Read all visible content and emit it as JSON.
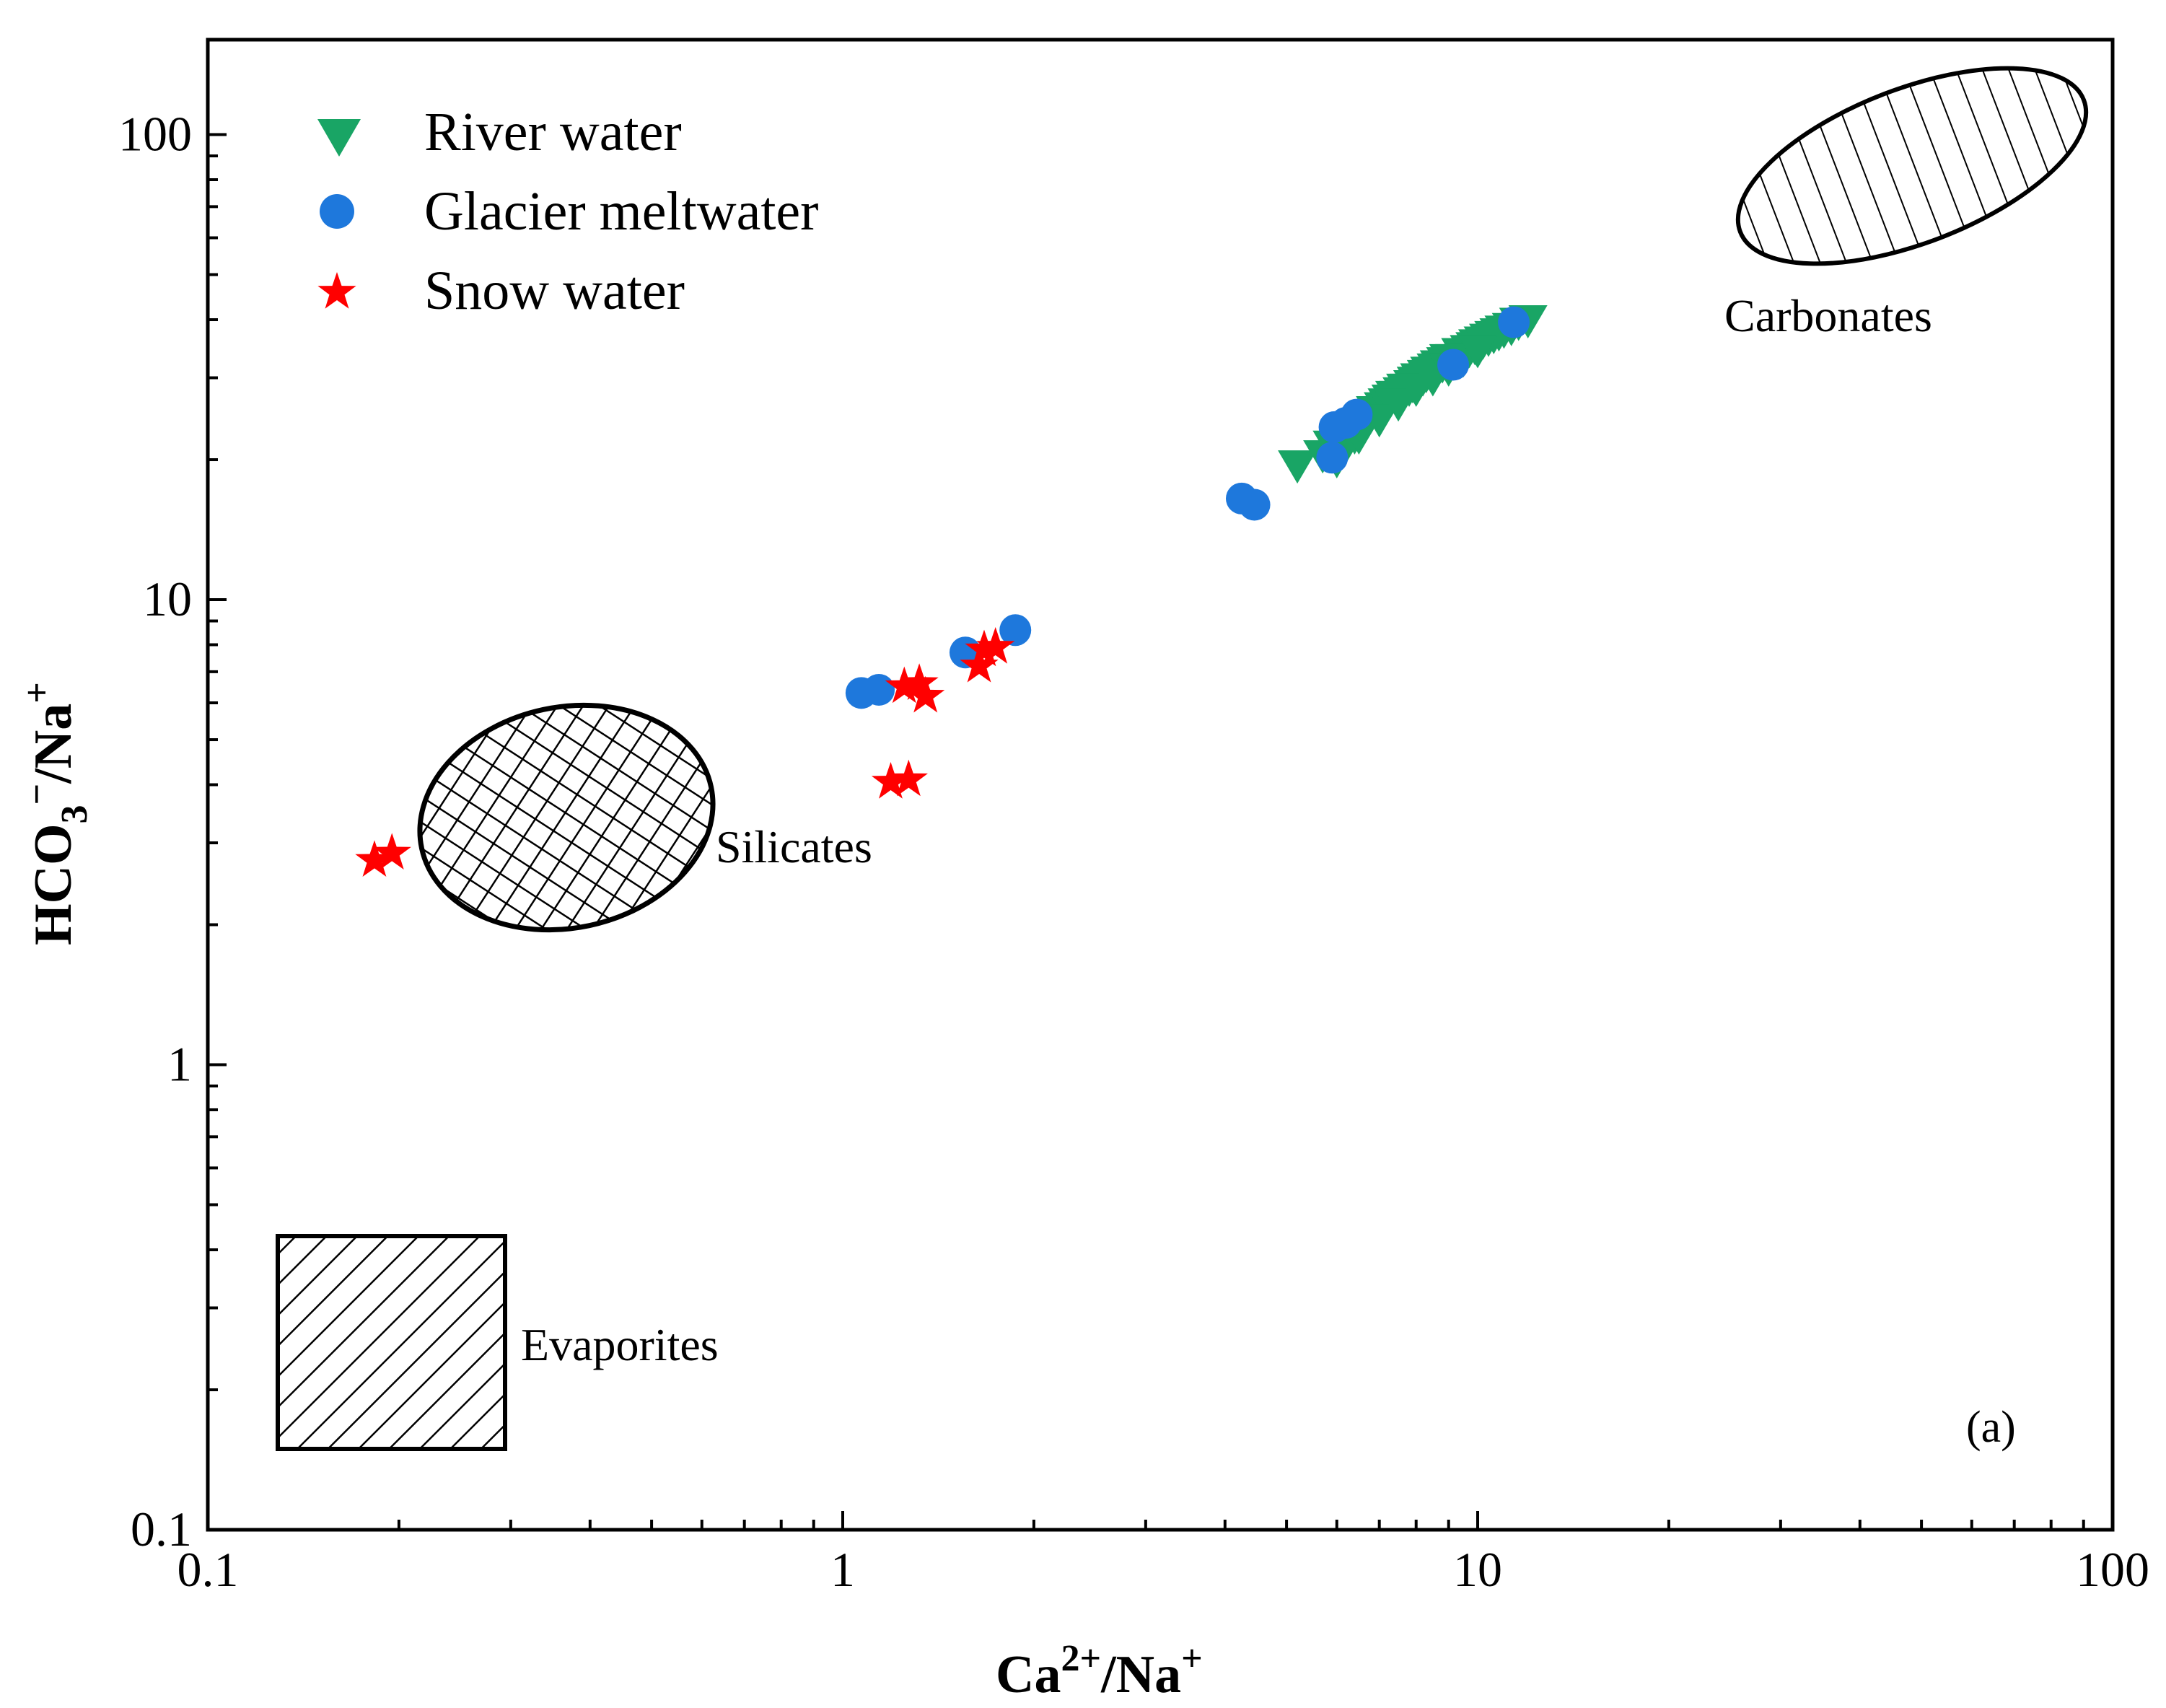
{
  "chart_data": {
    "type": "scatter",
    "xlabel": "Ca2+/Na+",
    "ylabel": "HCO3−/Na+",
    "xlabel_parts": {
      "base1": "Ca",
      "sup1": "2+",
      "mid": "/Na",
      "sup2": "+"
    },
    "ylabel_parts": {
      "base1": "HCO",
      "sub1": "3",
      "sup1": "−",
      "mid": "/Na",
      "sup2": "+"
    },
    "xscale": "log",
    "yscale": "log",
    "xlim": [
      0.1,
      100
    ],
    "ylim": [
      0.1,
      160
    ],
    "x_ticks": [
      0.1,
      1,
      10,
      100
    ],
    "x_tick_labels": [
      "0.1",
      "1",
      "10",
      "100"
    ],
    "y_ticks": [
      0.1,
      1,
      10,
      100
    ],
    "y_tick_labels": [
      "0.1",
      "1",
      "10",
      "100"
    ],
    "grid": false,
    "legend_position": "top-left",
    "panel_label": "(a)",
    "series": [
      {
        "name": "River water",
        "marker": "triangle-down",
        "color": "#19a565",
        "points": [
          [
            5.2,
            19.5
          ],
          [
            5.7,
            20.5
          ],
          [
            5.9,
            21.5
          ],
          [
            6.0,
            21.0
          ],
          [
            6.1,
            22.0
          ],
          [
            6.2,
            21.5
          ],
          [
            6.3,
            23.0
          ],
          [
            6.4,
            22.5
          ],
          [
            6.5,
            23.5
          ],
          [
            6.6,
            24.0
          ],
          [
            6.7,
            24.5
          ],
          [
            6.8,
            25.0
          ],
          [
            6.9,
            25.5
          ],
          [
            7.0,
            25.5
          ],
          [
            7.1,
            26.0
          ],
          [
            7.2,
            26.5
          ],
          [
            7.3,
            27.0
          ],
          [
            7.4,
            27.5
          ],
          [
            7.5,
            27.5
          ],
          [
            7.6,
            28.0
          ],
          [
            7.7,
            28.5
          ],
          [
            7.8,
            28.5
          ],
          [
            7.9,
            29.0
          ],
          [
            8.0,
            29.5
          ],
          [
            8.1,
            30.0
          ],
          [
            8.2,
            30.0
          ],
          [
            8.3,
            30.5
          ],
          [
            8.4,
            31.0
          ],
          [
            8.5,
            31.0
          ],
          [
            8.6,
            31.5
          ],
          [
            8.7,
            32.0
          ],
          [
            8.8,
            32.0
          ],
          [
            8.9,
            32.5
          ],
          [
            9.0,
            33.0
          ],
          [
            9.2,
            33.0
          ],
          [
            9.4,
            34.0
          ],
          [
            9.5,
            34.0
          ],
          [
            9.7,
            34.5
          ],
          [
            9.9,
            35.0
          ],
          [
            10.0,
            35.5
          ],
          [
            10.2,
            36.0
          ],
          [
            10.4,
            36.5
          ],
          [
            10.6,
            37.0
          ],
          [
            10.8,
            37.5
          ],
          [
            11.0,
            38.0
          ],
          [
            11.3,
            38.5
          ],
          [
            11.6,
            39.5
          ],
          [
            12.0,
            40.0
          ],
          [
            6.0,
            20.0
          ],
          [
            6.5,
            22.5
          ],
          [
            7.0,
            24.5
          ],
          [
            7.5,
            26.5
          ],
          [
            8.0,
            28.5
          ],
          [
            8.5,
            30.0
          ],
          [
            9.0,
            31.5
          ],
          [
            9.5,
            33.0
          ],
          [
            10.0,
            34.5
          ]
        ]
      },
      {
        "name": "Glacier meltwater",
        "marker": "circle",
        "color": "#1e78dc",
        "points": [
          [
            1.07,
            6.3
          ],
          [
            1.14,
            6.4
          ],
          [
            1.56,
            7.7
          ],
          [
            1.87,
            8.6
          ],
          [
            4.25,
            16.5
          ],
          [
            4.45,
            16.0
          ],
          [
            5.9,
            20.2
          ],
          [
            5.95,
            23.5
          ],
          [
            6.2,
            24.0
          ],
          [
            6.45,
            25.0
          ],
          [
            9.15,
            32.0
          ],
          [
            11.4,
            39.5
          ]
        ]
      },
      {
        "name": "Snow water",
        "marker": "star",
        "color": "#ff0000",
        "points": [
          [
            0.183,
            2.75
          ],
          [
            0.195,
            2.85
          ],
          [
            1.19,
            4.05
          ],
          [
            1.27,
            4.1
          ],
          [
            1.25,
            6.5
          ],
          [
            1.32,
            6.6
          ],
          [
            1.35,
            6.2
          ],
          [
            1.64,
            7.2
          ],
          [
            1.67,
            7.8
          ],
          [
            1.74,
            7.9
          ]
        ]
      }
    ],
    "regions": [
      {
        "label": "Silicates",
        "pattern": "crosshatch"
      },
      {
        "label": "Carbonates",
        "pattern": "vertical"
      },
      {
        "label": "Evaporites",
        "pattern": "diagonal"
      }
    ]
  }
}
